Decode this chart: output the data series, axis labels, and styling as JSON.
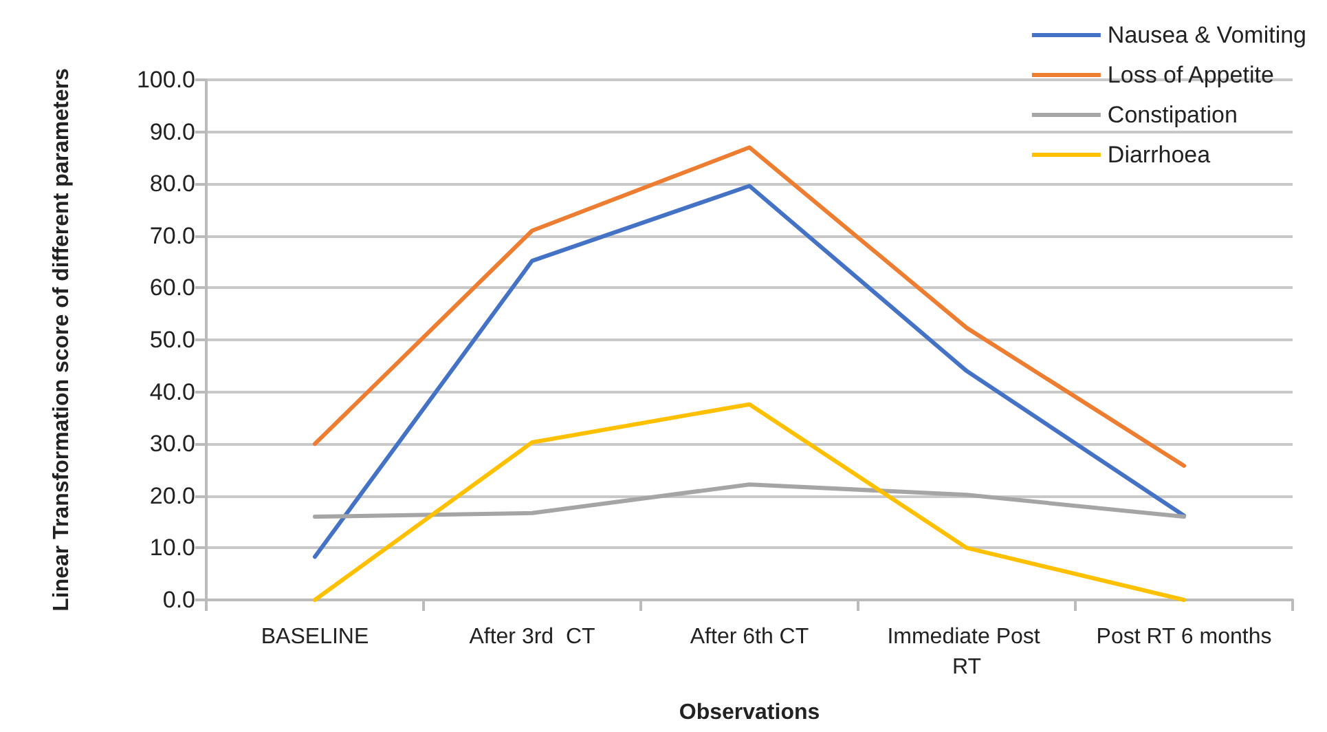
{
  "chart_data": {
    "type": "line",
    "xlabel": "Observations",
    "ylabel": "Linear Transformation score of different parameters",
    "categories": [
      "BASELINE",
      "After 3rd  CT",
      "After 6th CT",
      "Immediate Post RT",
      "Post RT 6 months"
    ],
    "series": [
      {
        "name": "Nausea & Vomiting",
        "color": "#4472c4",
        "values": [
          8.3,
          65.2,
          79.6,
          44.0,
          16.2
        ]
      },
      {
        "name": "Loss of Appetite",
        "color": "#ed7d31",
        "values": [
          30.0,
          71.0,
          87.0,
          52.3,
          25.8
        ]
      },
      {
        "name": "Constipation",
        "color": "#a5a5a5",
        "values": [
          16.0,
          16.7,
          22.2,
          20.2,
          16.0
        ]
      },
      {
        "name": "Diarrhoea",
        "color": "#ffc000",
        "values": [
          0,
          30.3,
          37.6,
          10.0,
          0
        ]
      }
    ],
    "ylim": [
      0,
      100
    ],
    "yticks": [
      {
        "value": 0,
        "label": "0.0"
      },
      {
        "value": 10,
        "label": "10.0"
      },
      {
        "value": 20,
        "label": "20.0"
      },
      {
        "value": 30,
        "label": "30.0"
      },
      {
        "value": 40,
        "label": "40.0"
      },
      {
        "value": 50,
        "label": "50.0"
      },
      {
        "value": 60,
        "label": "60.0"
      },
      {
        "value": 70,
        "label": "70.0"
      },
      {
        "value": 80,
        "label": "80.0"
      },
      {
        "value": 90,
        "label": "90.0"
      },
      {
        "value": 100,
        "label": "100.0"
      }
    ],
    "grid": "y",
    "legend": "top right",
    "marker": "none",
    "line_style": "solid"
  }
}
